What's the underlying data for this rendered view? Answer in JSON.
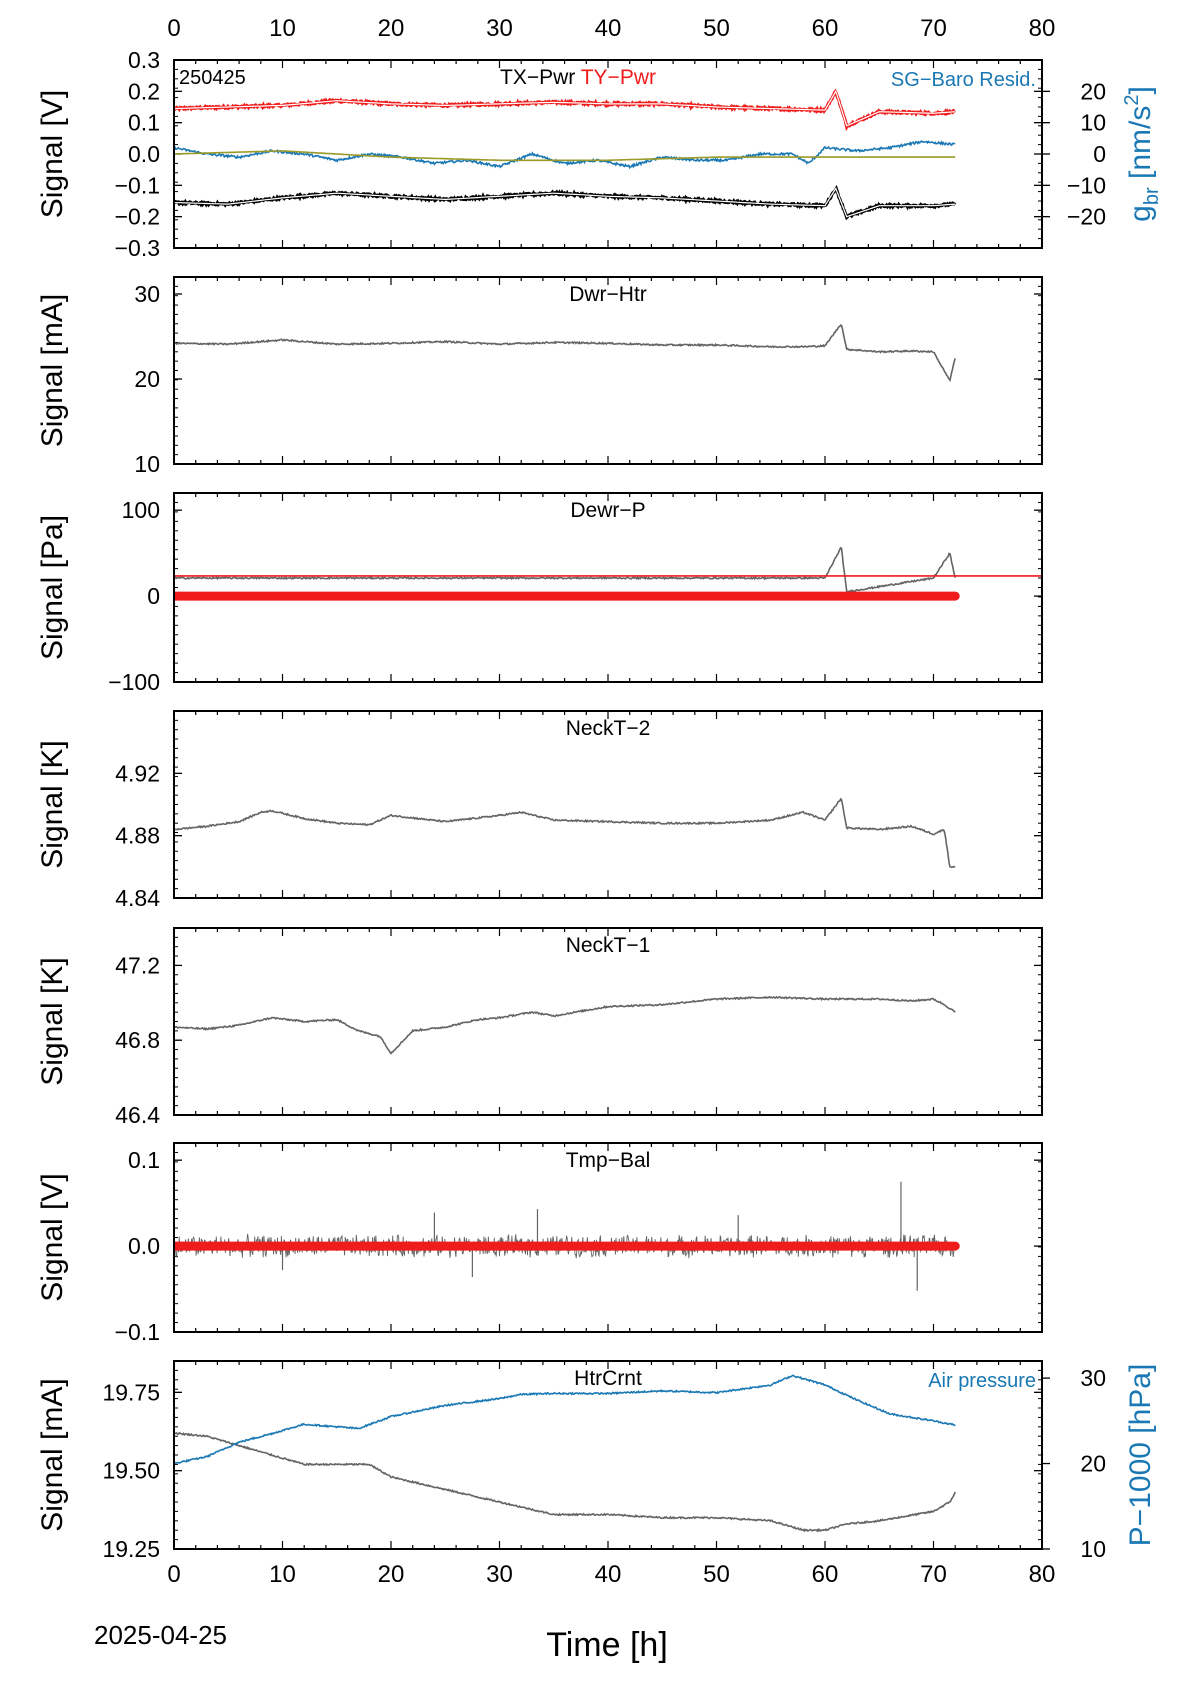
{
  "figure": {
    "date_label": "2025-04-25",
    "x_axis": {
      "label": "Time [h]",
      "range": [
        0,
        80
      ],
      "ticks": [
        0,
        10,
        20,
        30,
        40,
        50,
        60,
        70,
        80
      ],
      "top_ticks": true
    }
  },
  "colors": {
    "gray": "#646464",
    "red": "#f01c1c",
    "black": "#000000",
    "blue": "#1a78b4",
    "olive": "#9a9a28"
  },
  "chart_data": [
    {
      "type": "line",
      "id": "panel1",
      "corner_label": "250425",
      "title_parts": [
        {
          "text": "TX−Pwr",
          "color": "black"
        },
        {
          "text": "TY−Pwr",
          "color": "red"
        }
      ],
      "ylabel": "Signal [V]",
      "ylim": [
        -0.3,
        0.3
      ],
      "yticks": [
        "0.3",
        "0.2",
        "0.1",
        "0.0",
        "−0.1",
        "−0.2",
        "−0.3"
      ],
      "ytick_values": [
        0.3,
        0.2,
        0.1,
        0.0,
        -0.1,
        -0.2,
        -0.3
      ],
      "right_axis": {
        "label": "g",
        "label_sub": "br",
        "label_unit": " [nm/s",
        "label_sup": "2",
        "label_end": "]",
        "ylim": [
          -30,
          30
        ],
        "ticks": [
          "20",
          "10",
          "0",
          "−10",
          "−20"
        ],
        "tick_values": [
          20,
          10,
          0,
          -10,
          -20
        ],
        "color": "blue"
      },
      "annotation": {
        "text": "SG−Baro Resid.",
        "color": "blue"
      },
      "series": [
        {
          "name": "TY−Pwr",
          "color": "red",
          "axis": "left",
          "x": [
            0,
            5,
            10,
            15,
            20,
            25,
            30,
            35,
            40,
            45,
            50,
            55,
            60,
            61,
            62,
            65,
            70,
            72
          ],
          "y": [
            0.145,
            0.15,
            0.155,
            0.17,
            0.16,
            0.155,
            0.16,
            0.165,
            0.16,
            0.16,
            0.15,
            0.145,
            0.14,
            0.2,
            0.09,
            0.135,
            0.13,
            0.135
          ]
        },
        {
          "name": "TX−Pwr",
          "color": "black",
          "axis": "left",
          "x": [
            0,
            5,
            10,
            15,
            20,
            25,
            30,
            35,
            40,
            45,
            50,
            55,
            60,
            61,
            62,
            65,
            70,
            72
          ],
          "y": [
            -0.155,
            -0.16,
            -0.14,
            -0.125,
            -0.135,
            -0.145,
            -0.135,
            -0.125,
            -0.135,
            -0.14,
            -0.15,
            -0.16,
            -0.165,
            -0.11,
            -0.2,
            -0.165,
            -0.165,
            -0.16
          ]
        },
        {
          "name": "SG−Baro Resid.",
          "color": "blue",
          "axis": "right",
          "x": [
            0,
            3,
            6,
            9,
            12,
            15,
            18,
            21,
            24,
            27,
            30,
            33,
            36,
            39,
            42,
            45,
            48,
            51,
            54,
            57,
            58.5,
            60,
            63,
            66,
            69,
            72
          ],
          "y": [
            2,
            0,
            -1,
            1,
            0,
            -2,
            0,
            -1,
            -3,
            -2,
            -4,
            0,
            -3,
            -2,
            -4,
            -1,
            -2,
            -2,
            0,
            0,
            -3,
            2,
            1,
            2,
            4,
            3
          ]
        },
        {
          "name": "",
          "color": "olive",
          "axis": "right",
          "x": [
            0,
            10,
            20,
            30,
            40,
            50,
            60,
            72
          ],
          "y": [
            0,
            1,
            -1,
            -2,
            -2,
            -1,
            -1,
            -1
          ]
        }
      ]
    },
    {
      "type": "line",
      "id": "panel2",
      "title": "Dwr−Htr",
      "ylabel": "Signal [mA]",
      "ylim": [
        10,
        32
      ],
      "yticks": [
        "30",
        "20",
        "10"
      ],
      "ytick_values": [
        30,
        20,
        10
      ],
      "series": [
        {
          "name": "Dwr−Htr",
          "color": "gray",
          "x": [
            0,
            5,
            10,
            15,
            20,
            25,
            30,
            35,
            40,
            45,
            50,
            55,
            58,
            60,
            61.5,
            62,
            65,
            68,
            70,
            71.5,
            72
          ],
          "y": [
            24.2,
            24.1,
            24.6,
            24.1,
            24.2,
            24.4,
            24.1,
            24.3,
            24.2,
            24.0,
            24.0,
            23.8,
            23.8,
            23.9,
            26.5,
            23.5,
            23.2,
            23.3,
            23.2,
            19.8,
            22.5
          ]
        }
      ]
    },
    {
      "type": "line",
      "id": "panel3",
      "title": "Dewr−P",
      "ylabel": "Signal [Pa]",
      "ylim": [
        -100,
        120
      ],
      "yticks": [
        "100",
        "0",
        "−100"
      ],
      "ytick_values": [
        100,
        0,
        -100
      ],
      "series": [
        {
          "name": "Dewr−P",
          "color": "gray",
          "x": [
            0,
            10,
            20,
            30,
            40,
            50,
            60,
            61.5,
            62,
            70,
            71.5,
            72
          ],
          "y": [
            21,
            21,
            21,
            21,
            21,
            21,
            21,
            57,
            5,
            21,
            50,
            21
          ]
        },
        {
          "name": "",
          "color": "red",
          "x": [
            0,
            80
          ],
          "y": [
            23.5,
            23.5
          ]
        },
        {
          "name": "",
          "color": "red",
          "thick": true,
          "x": [
            0,
            72
          ],
          "y": [
            0,
            0
          ]
        }
      ]
    },
    {
      "type": "line",
      "id": "panel4",
      "title": "NeckT−2",
      "ylabel": "Signal [K]",
      "ylim": [
        4.84,
        4.96
      ],
      "yticks": [
        "4.92",
        "4.88",
        "4.84"
      ],
      "ytick_values": [
        4.92,
        4.88,
        4.84
      ],
      "series": [
        {
          "name": "NeckT−2",
          "color": "gray",
          "x": [
            0,
            3,
            6,
            8,
            9,
            12,
            15,
            18,
            20,
            25,
            30,
            32,
            35,
            40,
            45,
            50,
            55,
            58,
            60,
            61.5,
            62,
            65,
            68,
            70,
            71,
            71.5,
            72
          ],
          "y": [
            4.884,
            4.886,
            4.889,
            4.895,
            4.896,
            4.891,
            4.888,
            4.887,
            4.893,
            4.889,
            4.893,
            4.895,
            4.89,
            4.889,
            4.888,
            4.888,
            4.89,
            4.895,
            4.89,
            4.904,
            4.885,
            4.884,
            4.886,
            4.881,
            4.884,
            4.86,
            4.86
          ]
        }
      ]
    },
    {
      "type": "line",
      "id": "panel5",
      "title": "NeckT−1",
      "ylabel": "Signal [K]",
      "ylim": [
        46.4,
        47.4
      ],
      "yticks": [
        "47.2",
        "46.8",
        "46.4"
      ],
      "ytick_values": [
        47.2,
        46.8,
        46.4
      ],
      "series": [
        {
          "name": "NeckT−1",
          "color": "gray",
          "x": [
            0,
            3,
            6,
            9,
            12,
            15,
            17,
            19,
            20,
            22,
            25,
            28,
            30,
            33,
            35,
            40,
            45,
            50,
            55,
            60,
            65,
            68,
            70,
            71,
            72
          ],
          "y": [
            46.87,
            46.86,
            46.88,
            46.92,
            46.9,
            46.91,
            46.85,
            46.82,
            46.73,
            46.85,
            46.87,
            46.91,
            46.92,
            46.95,
            46.93,
            46.98,
            46.99,
            47.02,
            47.03,
            47.02,
            47.02,
            47.01,
            47.02,
            46.99,
            46.95
          ]
        }
      ]
    },
    {
      "type": "line",
      "id": "panel6",
      "title": "Tmp−Bal",
      "ylabel": "Signal [V]",
      "ylim": [
        -0.1,
        0.12
      ],
      "yticks": [
        "0.1",
        "0.0",
        "−0.1"
      ],
      "ytick_values": [
        0.1,
        0.0,
        -0.1
      ],
      "noise": {
        "center": 0,
        "amplitude": 0.011,
        "spikes": [
          [
            24,
            0.039
          ],
          [
            27.5,
            -0.036
          ],
          [
            33.5,
            0.043
          ],
          [
            52,
            0.036
          ],
          [
            67,
            0.075
          ],
          [
            68.5,
            -0.052
          ],
          [
            10,
            -0.028
          ]
        ]
      },
      "series": [
        {
          "name": "",
          "color": "red",
          "thick": true,
          "x": [
            0,
            72
          ],
          "y": [
            0,
            0
          ]
        }
      ]
    },
    {
      "type": "line",
      "id": "panel7",
      "title": "HtrCrnt",
      "ylabel": "Signal [mA]",
      "ylim": [
        19.25,
        19.85
      ],
      "yticks": [
        "19.75",
        "19.50",
        "19.25"
      ],
      "ytick_values": [
        19.75,
        19.5,
        19.25
      ],
      "right_axis": {
        "label": "P−1000 [hPa]",
        "ylim": [
          10,
          32
        ],
        "ticks": [
          "30",
          "20",
          "10"
        ],
        "tick_values": [
          30,
          20,
          10
        ],
        "color": "blue"
      },
      "annotation": {
        "text": "Air pressure",
        "color": "blue"
      },
      "series": [
        {
          "name": "HtrCrnt",
          "color": "gray",
          "axis": "left",
          "x": [
            0,
            3,
            6,
            9,
            12,
            15,
            18,
            20,
            25,
            30,
            35,
            40,
            45,
            50,
            55,
            58,
            60,
            62,
            65,
            70,
            71.5,
            72
          ],
          "y": [
            19.62,
            19.61,
            19.58,
            19.55,
            19.52,
            19.52,
            19.52,
            19.48,
            19.44,
            19.4,
            19.36,
            19.36,
            19.35,
            19.35,
            19.34,
            19.31,
            19.31,
            19.33,
            19.34,
            19.37,
            19.4,
            19.43
          ]
        },
        {
          "name": "Air pressure",
          "color": "blue",
          "axis": "right",
          "x": [
            0,
            3,
            6,
            9,
            12,
            15,
            17,
            20,
            25,
            30,
            32,
            35,
            40,
            45,
            50,
            55,
            57,
            60,
            63,
            66,
            70,
            72
          ],
          "y": [
            20.0,
            20.8,
            22.5,
            23.5,
            24.6,
            24.3,
            24.1,
            25.5,
            26.8,
            27.6,
            28.1,
            28.2,
            28.2,
            28.5,
            28.3,
            29.2,
            30.3,
            29.2,
            27.4,
            25.8,
            25.0,
            24.5
          ]
        }
      ]
    }
  ]
}
